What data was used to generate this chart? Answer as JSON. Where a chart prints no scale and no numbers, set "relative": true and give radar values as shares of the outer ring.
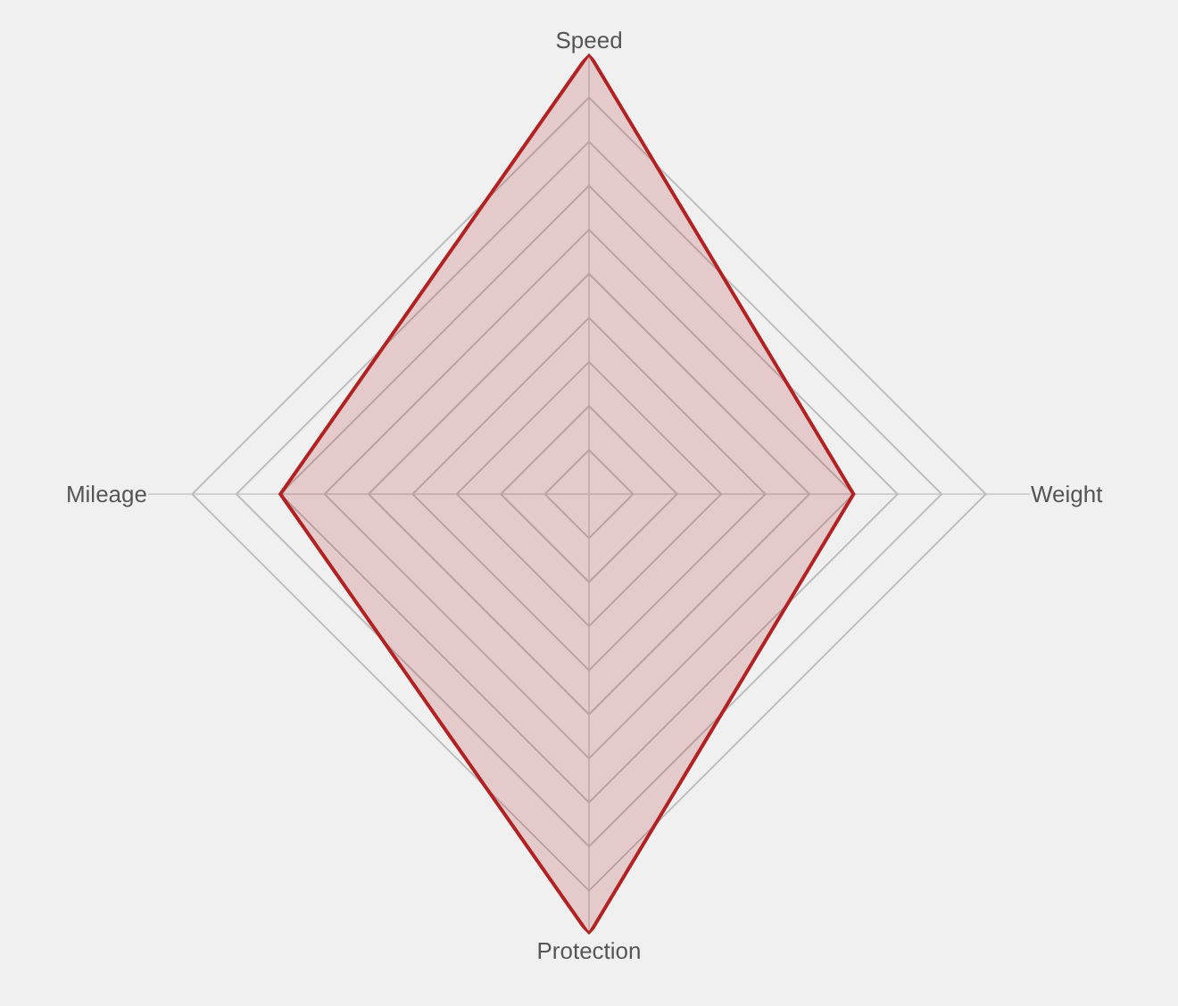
{
  "chart_data": {
    "type": "radar",
    "relative": true,
    "grid": true,
    "marker": "none",
    "categories": [
      "Speed",
      "Weight",
      "Protection",
      "Mileage"
    ],
    "series": [
      {
        "color": "#b22222",
        "values": [
          1.0,
          0.6,
          1.0,
          0.7
        ]
      }
    ]
  }
}
